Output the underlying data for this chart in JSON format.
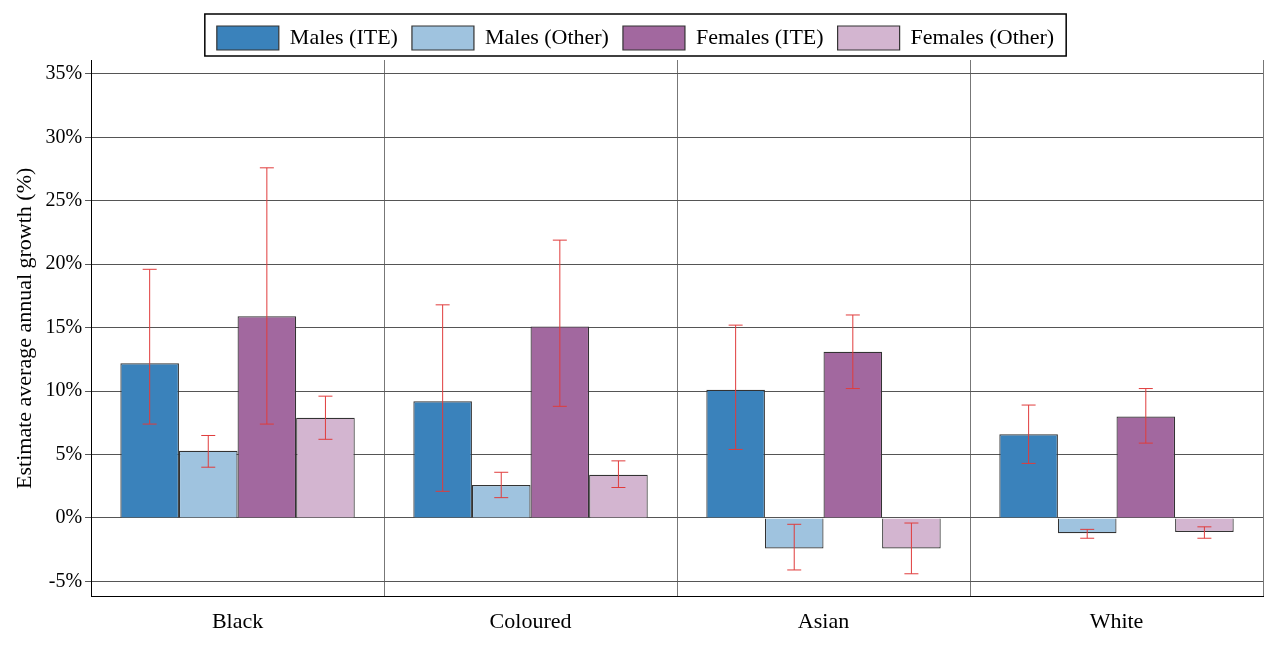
{
  "chart_data": {
    "type": "bar",
    "ylabel": "Estimate average annual growth (%)",
    "categories": [
      "Black",
      "Coloured",
      "Asian",
      "White"
    ],
    "series": [
      {
        "name": "Males (ITE)",
        "color": "#3a82bb",
        "values": [
          12.2,
          9.2,
          10.1,
          6.6
        ],
        "errors": [
          [
            7.4,
            19.6
          ],
          [
            2.1,
            16.8
          ],
          [
            5.4,
            15.2
          ],
          [
            4.3,
            8.9
          ]
        ]
      },
      {
        "name": "Males (Other)",
        "color": "#9fc3df",
        "values": [
          5.3,
          2.6,
          -2.4,
          -1.2
        ],
        "errors": [
          [
            4.0,
            6.5
          ],
          [
            1.6,
            3.6
          ],
          [
            -4.1,
            -0.5
          ],
          [
            -1.6,
            -0.9
          ]
        ]
      },
      {
        "name": "Females (ITE)",
        "color": "#a2689f",
        "values": [
          15.9,
          15.1,
          13.1,
          8.0
        ],
        "errors": [
          [
            7.4,
            27.6
          ],
          [
            8.8,
            21.9
          ],
          [
            10.2,
            16.0
          ],
          [
            5.9,
            10.2
          ]
        ]
      },
      {
        "name": "Females (Other)",
        "color": "#d3b5d0",
        "values": [
          7.9,
          3.4,
          -2.4,
          -1.1
        ],
        "errors": [
          [
            6.2,
            9.6
          ],
          [
            2.4,
            4.5
          ],
          [
            -4.4,
            -0.4
          ],
          [
            -1.6,
            -0.7
          ]
        ]
      }
    ],
    "ylim": [
      -6.2,
      36.1
    ],
    "yticks": [
      {
        "value": -5,
        "label": "-5%"
      },
      {
        "value": 0,
        "label": "0%"
      },
      {
        "value": 5,
        "label": "5%"
      },
      {
        "value": 10,
        "label": "10%"
      },
      {
        "value": 15,
        "label": "15%"
      },
      {
        "value": 20,
        "label": "20%"
      },
      {
        "value": 25,
        "label": "25%"
      },
      {
        "value": 30,
        "label": "30%"
      },
      {
        "value": 35,
        "label": "35%"
      }
    ],
    "grid": true,
    "legend": "top"
  }
}
